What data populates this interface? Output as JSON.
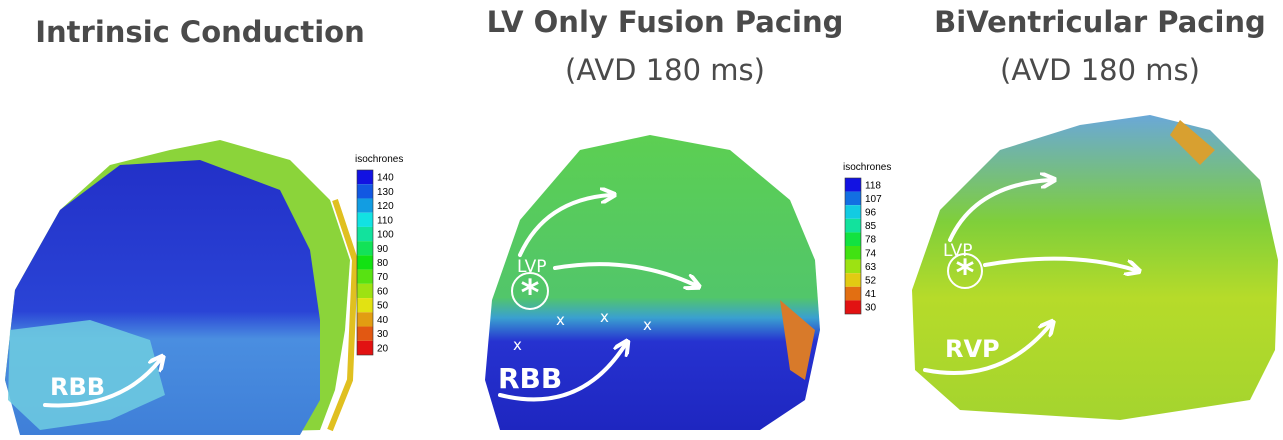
{
  "panels": [
    {
      "title": "Intrinsic Conduction",
      "legend": {
        "title": "isochrones",
        "values": [
          140,
          130,
          120,
          110,
          100,
          90,
          80,
          70,
          60,
          50,
          40,
          30,
          20
        ]
      },
      "labels": [
        "RBB"
      ]
    },
    {
      "title": "LV Only Fusion Pacing",
      "subtitle": "(AVD 180 ms)",
      "legend": {
        "title": "isochrones",
        "values": [
          118,
          107,
          96,
          85,
          78,
          74,
          63,
          52,
          41,
          30
        ]
      },
      "labels": [
        "LVP",
        "RBB"
      ],
      "site_marker": "*",
      "block_marks": [
        "x",
        "x",
        "x",
        "x"
      ]
    },
    {
      "title": "BiVentricular Pacing",
      "subtitle": "(AVD 180 ms)",
      "labels": [
        "LVP",
        "RVP"
      ],
      "site_marker": "*"
    }
  ]
}
